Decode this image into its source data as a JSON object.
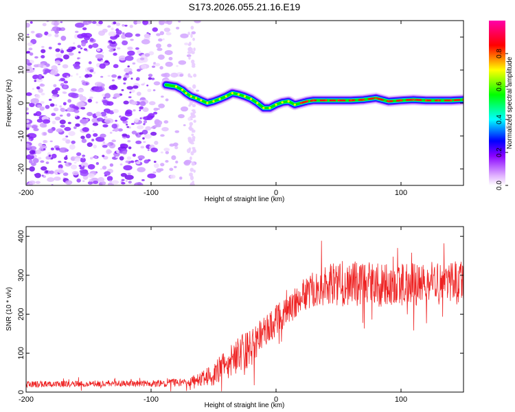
{
  "title": "S173.2026.055.21.16.E19",
  "chart_data": [
    {
      "type": "heatmap",
      "name": "spectrogram",
      "xlabel": "Height of straight line (km)",
      "ylabel": "Frequency (Hz)",
      "xlim": [
        -200,
        150
      ],
      "ylim": [
        -25,
        25
      ],
      "xticks": [
        -200,
        -100,
        0,
        100
      ],
      "yticks": [
        -20,
        -10,
        0,
        10,
        20
      ],
      "colorbar": {
        "label": "Normalized spectral amplitude",
        "range": [
          0,
          1
        ],
        "ticks": [
          "0.0",
          "0.2",
          "0.4",
          "0.6",
          "0.8"
        ],
        "colormap": [
          "#ffffff",
          "#e0b0ff",
          "#8800ff",
          "#0000ff",
          "#00ffff",
          "#00ff00",
          "#ffff00",
          "#ff0000",
          "#ff00ff"
        ]
      },
      "noise_region_x": [
        -200,
        -62
      ],
      "track": {
        "start_x": -90,
        "end_x": 150,
        "points": [
          [
            -88,
            5.5
          ],
          [
            -80,
            5
          ],
          [
            -75,
            4
          ],
          [
            -72,
            3
          ],
          [
            -68,
            2
          ],
          [
            -64,
            1.5
          ],
          [
            -60,
            0.8
          ],
          [
            -55,
            0
          ],
          [
            -50,
            0.5
          ],
          [
            -45,
            1.2
          ],
          [
            -40,
            2
          ],
          [
            -35,
            3
          ],
          [
            -30,
            2.6
          ],
          [
            -25,
            2
          ],
          [
            -20,
            1.2
          ],
          [
            -15,
            0
          ],
          [
            -10,
            -1.5
          ],
          [
            -5,
            -1.5
          ],
          [
            0,
            -0.5
          ],
          [
            5,
            0.2
          ],
          [
            10,
            0.5
          ],
          [
            15,
            -0.5
          ],
          [
            20,
            0
          ],
          [
            25,
            0.5
          ],
          [
            30,
            0.8
          ],
          [
            40,
            0.8
          ],
          [
            50,
            0.8
          ],
          [
            60,
            0.8
          ],
          [
            70,
            1
          ],
          [
            80,
            1.5
          ],
          [
            90,
            0.5
          ],
          [
            100,
            0.8
          ],
          [
            110,
            1
          ],
          [
            120,
            0.8
          ],
          [
            130,
            0.8
          ],
          [
            140,
            0.8
          ],
          [
            150,
            1
          ]
        ]
      }
    },
    {
      "type": "line",
      "name": "snr",
      "xlabel": "Height of straight line (km)",
      "ylabel": "SNR (10 * v/v)",
      "xlim": [
        -200,
        150
      ],
      "ylim": [
        0,
        425
      ],
      "xticks": [
        -200,
        -100,
        0,
        100
      ],
      "yticks": [
        0,
        100,
        200,
        300,
        400
      ],
      "color": "#ee2222",
      "envelope": {
        "x": [
          -200,
          -150,
          -100,
          -70,
          -60,
          -50,
          -40,
          -30,
          -20,
          -10,
          0,
          10,
          20,
          30,
          40,
          60,
          80,
          100,
          120,
          150
        ],
        "mean": [
          20,
          22,
          22,
          25,
          35,
          45,
          70,
          95,
          115,
          150,
          185,
          210,
          245,
          265,
          275,
          280,
          275,
          275,
          280,
          280
        ],
        "amplitude": [
          8,
          8,
          8,
          12,
          18,
          30,
          40,
          45,
          50,
          45,
          40,
          38,
          40,
          45,
          55,
          60,
          58,
          55,
          55,
          55
        ]
      }
    }
  ]
}
